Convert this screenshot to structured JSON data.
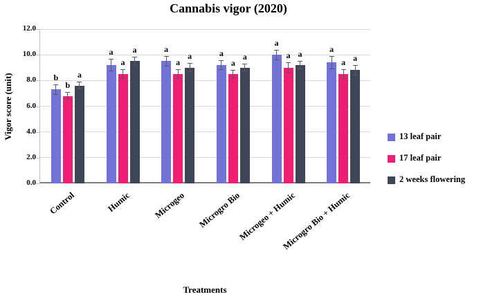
{
  "chart_data": {
    "type": "bar",
    "title": "Cannabis vigor (2020)",
    "xlabel": "Treatments",
    "ylabel": "Vigor score (unit)",
    "ylim": [
      0,
      12
    ],
    "ytick_step": 2,
    "grid": true,
    "legend_position": "right",
    "categories": [
      "Control",
      "Humic",
      "Microgeo",
      "Microgro Bio",
      "Microgeo + Humic",
      "Microgro Bio + Humic"
    ],
    "series": [
      {
        "name": "13 leaf pair",
        "color": "#7372d8",
        "values": [
          7.3,
          9.2,
          9.5,
          9.2,
          10.0,
          9.4
        ],
        "errors": [
          0.4,
          0.5,
          0.4,
          0.4,
          0.4,
          0.5
        ],
        "letters": [
          "b",
          "a",
          "a",
          "a",
          "a",
          "a"
        ]
      },
      {
        "name": "17 leaf pair",
        "color": "#ee1f73",
        "values": [
          6.8,
          8.5,
          8.5,
          8.5,
          9.0,
          8.5
        ],
        "errors": [
          0.3,
          0.4,
          0.4,
          0.35,
          0.4,
          0.4
        ],
        "letters": [
          "b",
          "a",
          "a",
          "a",
          "a",
          "a"
        ]
      },
      {
        "name": "2 weeks flowering",
        "color": "#3d4557",
        "values": [
          7.6,
          9.5,
          9.0,
          9.0,
          9.2,
          8.8
        ],
        "errors": [
          0.3,
          0.35,
          0.35,
          0.3,
          0.3,
          0.4
        ],
        "letters": [
          "a",
          "a",
          "a",
          "a",
          "a",
          "a"
        ]
      }
    ]
  }
}
